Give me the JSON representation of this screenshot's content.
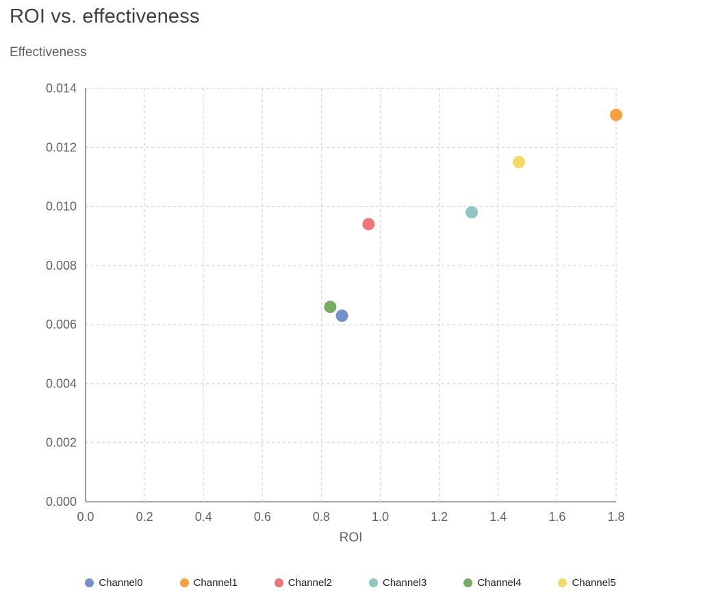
{
  "page": {
    "title": "ROI vs. effectiveness",
    "y_axis_label": "Effectiveness",
    "x_axis_label": "ROI"
  },
  "chart_data": {
    "type": "scatter",
    "title": "ROI vs. effectiveness",
    "xlabel": "ROI",
    "ylabel": "Effectiveness",
    "xlim": [
      0.0,
      1.8
    ],
    "ylim": [
      0.0,
      0.014
    ],
    "x_ticks": [
      0.0,
      0.2,
      0.4,
      0.6,
      0.8,
      1.0,
      1.2,
      1.4,
      1.6,
      1.8
    ],
    "y_ticks": [
      0.0,
      0.002,
      0.004,
      0.006,
      0.008,
      0.01,
      0.012,
      0.014
    ],
    "grid": "dashed",
    "legend_position": "bottom",
    "series": [
      {
        "name": "Channel0",
        "color": "#7191c8",
        "x": 0.87,
        "y": 0.0063
      },
      {
        "name": "Channel1",
        "color": "#f99e3e",
        "x": 1.8,
        "y": 0.0131
      },
      {
        "name": "Channel2",
        "color": "#ed767d",
        "x": 0.96,
        "y": 0.0094
      },
      {
        "name": "Channel3",
        "color": "#8fc6c4",
        "x": 1.31,
        "y": 0.0098
      },
      {
        "name": "Channel4",
        "color": "#77ad63",
        "x": 0.83,
        "y": 0.0066
      },
      {
        "name": "Channel5",
        "color": "#f4d867",
        "x": 1.47,
        "y": 0.0115
      }
    ]
  }
}
